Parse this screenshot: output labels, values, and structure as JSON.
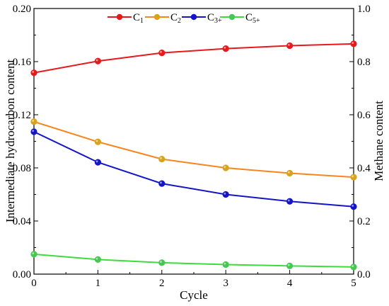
{
  "chart_data": {
    "type": "line",
    "x": [
      0,
      1,
      2,
      3,
      4,
      5
    ],
    "xlim": [
      0,
      5
    ],
    "x_ticks": [
      "0",
      "1",
      "2",
      "3",
      "4",
      "5"
    ],
    "xlabel": "Cycle",
    "ylabel_left": "Intermediate hydrocarbon content",
    "ylim_left": [
      0,
      0.2
    ],
    "y_ticks_left": [
      "0.00",
      "0.04",
      "0.08",
      "0.12",
      "0.16",
      "0.20"
    ],
    "ylabel_right": "Methane content",
    "ylim_right": [
      0,
      1.0
    ],
    "y_ticks_right": [
      "0.0",
      "0.2",
      "0.4",
      "0.6",
      "0.8",
      "1.0"
    ],
    "legend_position": "top-center",
    "grid": false,
    "series": [
      {
        "name": "C",
        "subscript": "1",
        "axis": "right",
        "color": "#e8191c",
        "marker_color": "#e8191c",
        "values": [
          0.758,
          0.802,
          0.833,
          0.849,
          0.86,
          0.867
        ]
      },
      {
        "name": "C",
        "subscript": "2",
        "axis": "left",
        "color": "#f7861e",
        "marker_color": "#d7a21c",
        "values": [
          0.1148,
          0.0996,
          0.0866,
          0.08,
          0.076,
          0.073
        ]
      },
      {
        "name": "C",
        "subscript": "3+",
        "axis": "left",
        "color": "#1515c8",
        "marker_color": "#1515c8",
        "values": [
          0.1072,
          0.0842,
          0.0682,
          0.06,
          0.0548,
          0.0508
        ]
      },
      {
        "name": "C",
        "subscript": "5+",
        "axis": "left",
        "color": "#3ddc3d",
        "marker_color": "#47c653",
        "values": [
          0.015,
          0.011,
          0.0086,
          0.0072,
          0.0062,
          0.0054
        ]
      }
    ]
  }
}
